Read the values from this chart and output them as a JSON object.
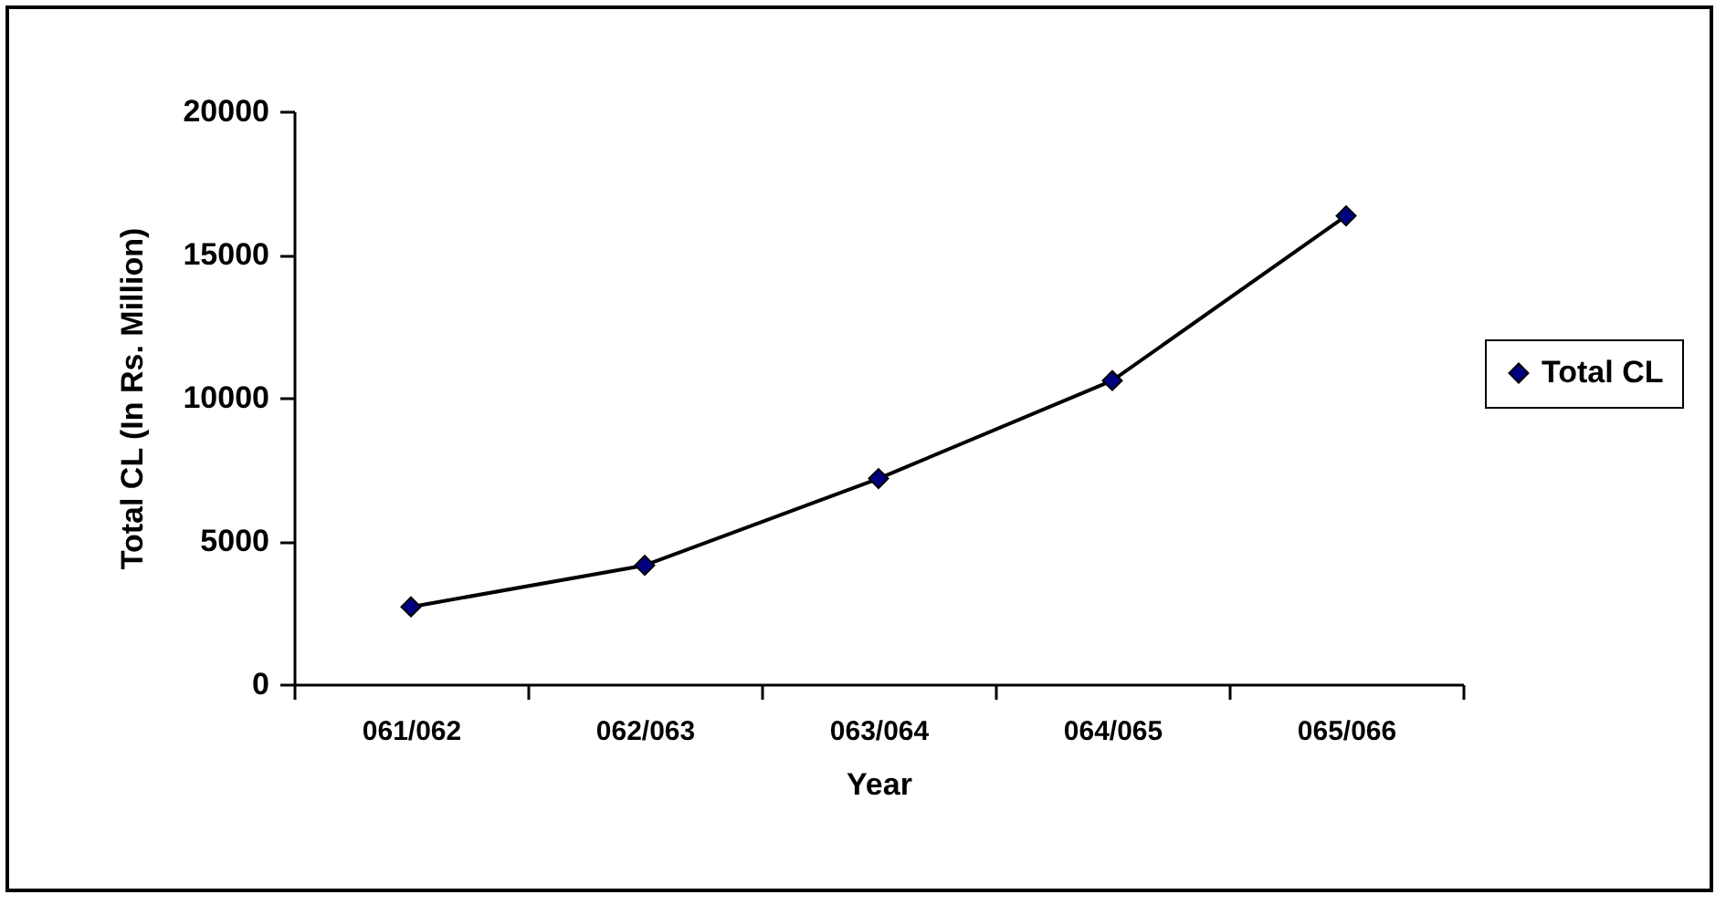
{
  "chart_data": {
    "type": "line",
    "xlabel": "Year",
    "ylabel": "Total CL (In Rs. Million)",
    "categories": [
      "061/062",
      "062/063",
      "063/064",
      "064/065",
      "065/066"
    ],
    "series": [
      {
        "name": "Total CL",
        "color": "#000080",
        "values": [
          2700,
          4150,
          7180,
          10600,
          16350
        ]
      }
    ],
    "ylim": [
      0,
      20000
    ],
    "yticks": [
      0,
      5000,
      10000,
      15000,
      20000
    ],
    "grid": false,
    "legend": "right",
    "marker": "diamond",
    "line_style": "solid"
  }
}
